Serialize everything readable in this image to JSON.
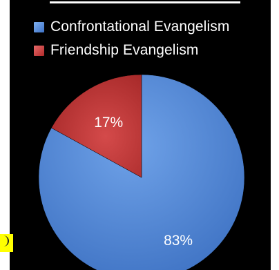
{
  "chart_data": {
    "type": "pie",
    "series": [
      {
        "name": "Confrontational Evangelism",
        "value": 83,
        "label": "83%",
        "color": "#4f86d6"
      },
      {
        "name": "Friendship Evangelism",
        "value": 17,
        "label": "17%",
        "color": "#c83737"
      }
    ],
    "legend_position": "top"
  },
  "colors": {
    "background": "#000000",
    "slide_frame": "#ffffff",
    "highlight": "#ffff00"
  }
}
